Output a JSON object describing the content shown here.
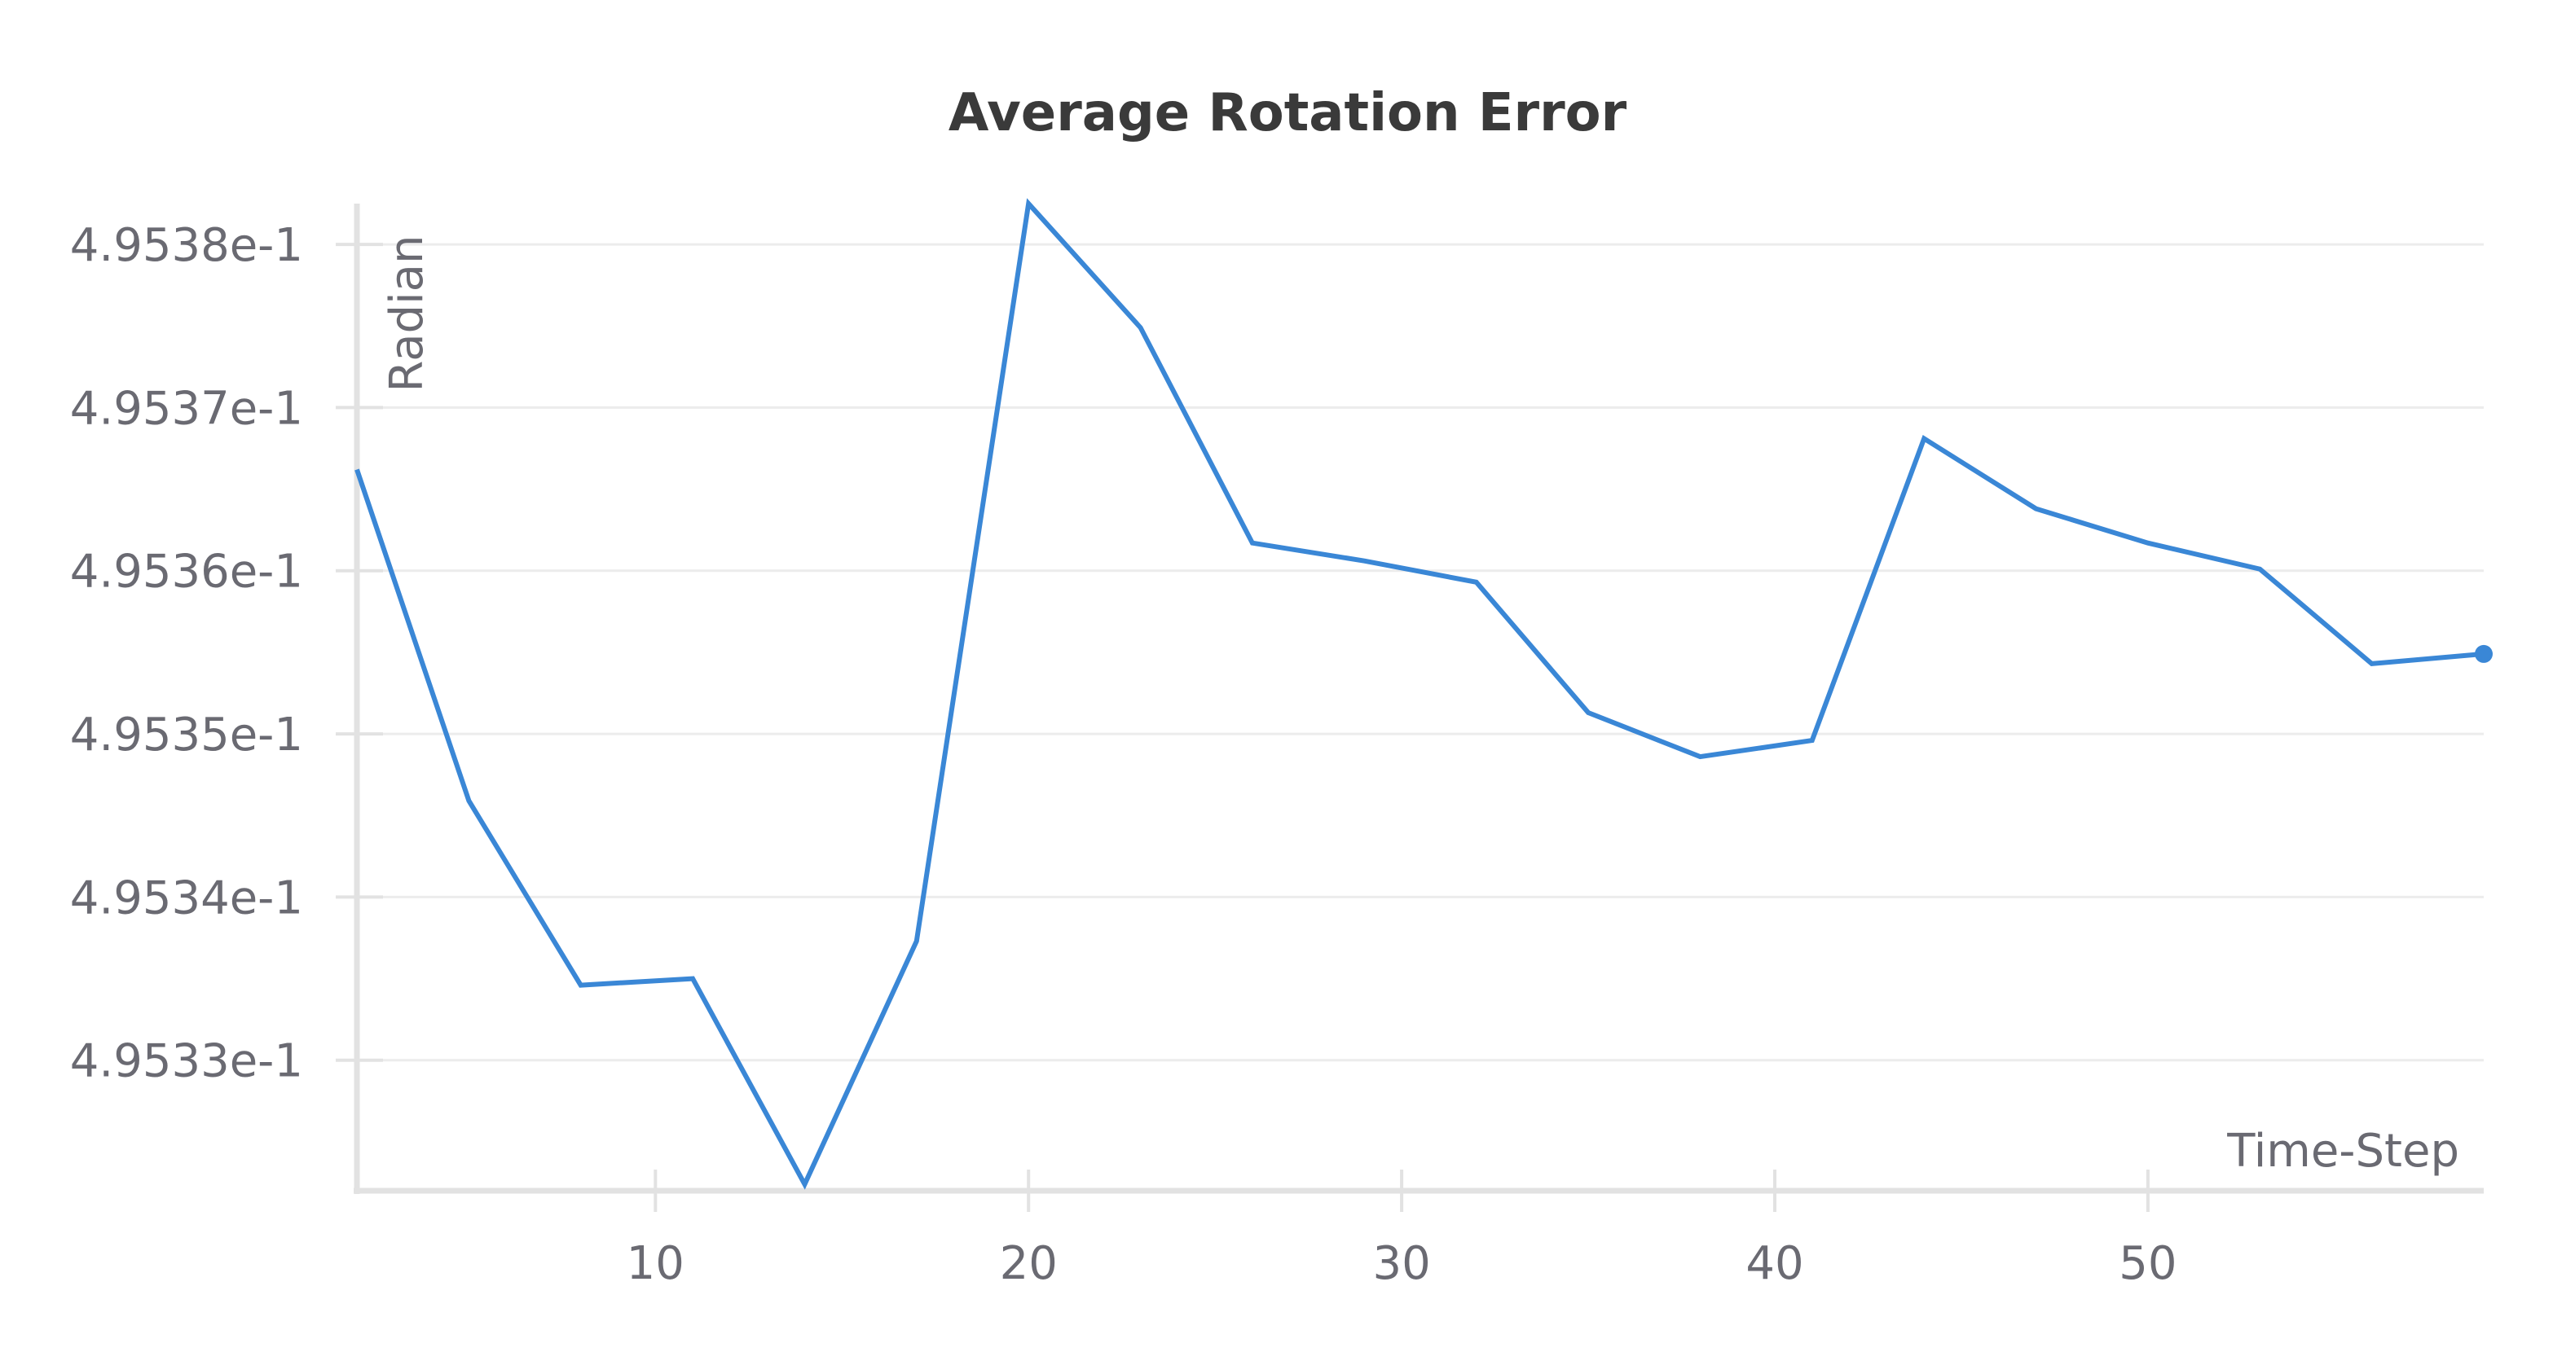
{
  "chart_data": {
    "type": "line",
    "title": "Average Rotation Error",
    "xlabel": "Time-Step",
    "ylabel": "Radian",
    "xlim": [
      2,
      59
    ],
    "ylim": [
      0.495322,
      0.4953825
    ],
    "x_ticks": [
      10,
      20,
      30,
      40,
      50
    ],
    "x_tick_labels": [
      "10",
      "20",
      "30",
      "40",
      "50"
    ],
    "y_ticks": [
      0.49533,
      0.49534,
      0.49535,
      0.49536,
      0.49537,
      0.49538
    ],
    "y_tick_labels": [
      "4.9533e-1",
      "4.9534e-1",
      "4.9535e-1",
      "4.9536e-1",
      "4.9537e-1",
      "4.9538e-1"
    ],
    "grid": true,
    "series": [
      {
        "x": [
          2,
          5,
          8,
          11,
          14,
          17,
          20,
          23,
          26,
          29,
          32,
          35,
          38,
          41,
          44,
          47,
          50,
          53,
          56,
          59
        ],
        "y": [
          0.4953662,
          0.4953459,
          0.4953346,
          0.495335,
          0.4953224,
          0.4953373,
          0.4953825,
          0.4953749,
          0.4953617,
          0.4953606,
          0.4953593,
          0.4953513,
          0.4953486,
          0.4953496,
          0.4953681,
          0.4953638,
          0.4953617,
          0.4953601,
          0.4953543,
          0.4953549
        ],
        "color": "#3a87d6"
      }
    ]
  }
}
